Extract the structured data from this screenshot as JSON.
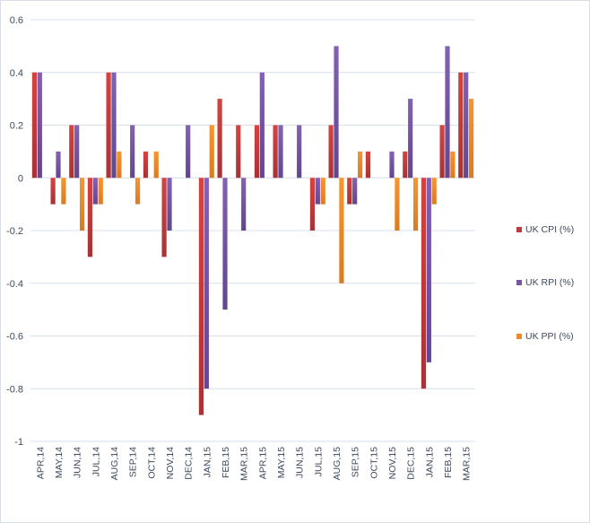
{
  "chart_data": {
    "type": "bar",
    "title": "",
    "xlabel": "",
    "ylabel": "",
    "ylim": [
      -1,
      0.6
    ],
    "yticks": [
      0.6,
      0.4,
      0.2,
      0,
      -0.2,
      -0.4,
      -0.6,
      -0.8,
      -1
    ],
    "ytick_labels": [
      "0.6",
      "0.4",
      "0.2",
      "0",
      "-0.2",
      "-0.4",
      "-0.6",
      "-0.8",
      "-1"
    ],
    "grid": true,
    "legend_position": "right",
    "categories": [
      "APR,14",
      "MAY,14",
      "JUN,14",
      "JUL,14",
      "AUG,14",
      "SEP,14",
      "OCT,14",
      "NOV,14",
      "DEC,14",
      "JAN,15",
      "FEB,15",
      "MAR,15",
      "APR,15",
      "MAY,15",
      "JUN,15",
      "JUL,15",
      "AUG,15",
      "SEP,15",
      "OCT,15",
      "NOV,15",
      "DEC,15",
      "JAN,15",
      "FEB,15",
      "MAR,15"
    ],
    "series": [
      {
        "name": "UK CPI (%)",
        "color": "#c0393b",
        "values": [
          0.4,
          -0.1,
          0.2,
          -0.3,
          0.4,
          0,
          0.1,
          -0.3,
          0,
          -0.9,
          0.3,
          0.2,
          0.2,
          0.2,
          0,
          -0.2,
          0.2,
          -0.1,
          0.1,
          0,
          0.1,
          -0.8,
          0.2,
          0.4
        ]
      },
      {
        "name": "UK RPI (%)",
        "color": "#7a55a6",
        "values": [
          0.4,
          0.1,
          0.2,
          -0.1,
          0.4,
          0.2,
          0,
          -0.2,
          0.2,
          -0.8,
          -0.5,
          -0.2,
          0.4,
          0.2,
          0.2,
          -0.1,
          0.5,
          -0.1,
          0,
          0.1,
          0.3,
          -0.7,
          0.5,
          0.4
        ]
      },
      {
        "name": "UK PPI (%)",
        "color": "#f0892a",
        "values": [
          0,
          -0.1,
          -0.2,
          -0.1,
          0.1,
          -0.1,
          0.1,
          0,
          0,
          0.2,
          0,
          0,
          0,
          0,
          0,
          -0.1,
          -0.4,
          0.1,
          0,
          -0.2,
          -0.2,
          -0.1,
          0.1,
          0.3
        ]
      }
    ]
  }
}
